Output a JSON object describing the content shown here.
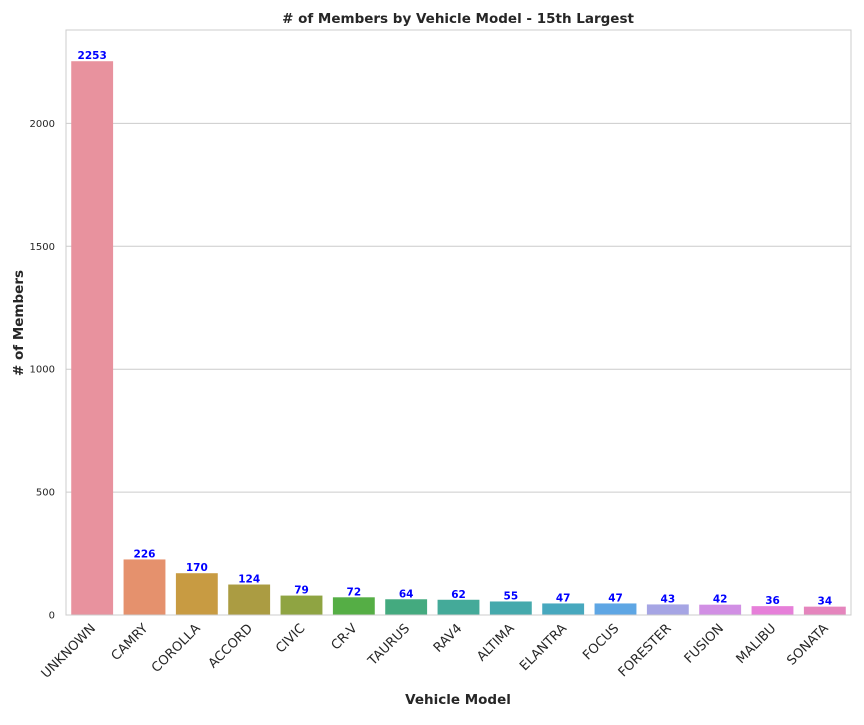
{
  "chart_data": {
    "type": "bar",
    "title": "# of Members by Vehicle Model - 15th Largest",
    "xlabel": "Vehicle Model",
    "ylabel": "# of Members",
    "categories": [
      "UNKNOWN",
      "CAMRY",
      "COROLLA",
      "ACCORD",
      "CIVIC",
      "CR-V",
      "TAURUS",
      "RAV4",
      "ALTIMA",
      "ELANTRA",
      "FOCUS",
      "FORESTER",
      "FUSION",
      "MALIBU",
      "SONATA"
    ],
    "values": [
      2253,
      226,
      170,
      124,
      79,
      72,
      64,
      62,
      55,
      47,
      47,
      43,
      42,
      36,
      34
    ],
    "data_labels": [
      "2253",
      "226",
      "170",
      "124",
      "79",
      "72",
      "64",
      "62",
      "55",
      "47",
      "47",
      "43",
      "42",
      "36",
      "34"
    ],
    "colors": [
      "#e8929e",
      "#e5916d",
      "#c89b42",
      "#ab9c42",
      "#8fa442",
      "#55ae45",
      "#44aa7f",
      "#44aa99",
      "#45a9ac",
      "#47a8be",
      "#5ea6e4",
      "#a6a5e4",
      "#d18fe4",
      "#e67fd9",
      "#e585bd"
    ],
    "ylim": [
      0,
      2380
    ],
    "yticks": [
      0,
      500,
      1000,
      1500,
      2000
    ],
    "ytick_labels": [
      "0",
      "500",
      "1000",
      "1500",
      "2000"
    ],
    "grid": true,
    "data_label_color": "#0000ff"
  }
}
